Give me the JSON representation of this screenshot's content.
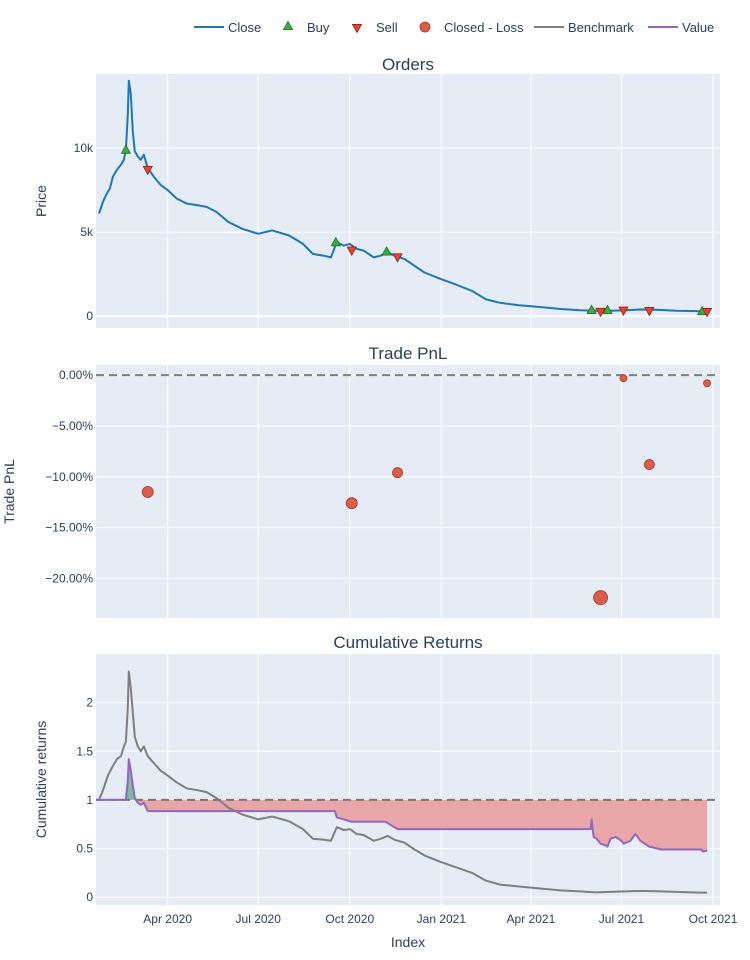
{
  "chart_data": {
    "type": "line",
    "x_ticks": [
      "Apr 2020",
      "Jul 2020",
      "Oct 2020",
      "Jan 2021",
      "Apr 2021",
      "Jul 2021",
      "Oct 2021"
    ],
    "xlabel": "Index",
    "x_range": [
      "2020-01-20",
      "2021-10-08"
    ],
    "legend": {
      "placement": "top-right",
      "entries": [
        "Close",
        "Buy",
        "Sell",
        "Closed - Loss",
        "Benchmark",
        "Value"
      ]
    },
    "colors": {
      "plot_bg": "#e5ecf6",
      "grid": "#ffffff",
      "close": "#1f77b4",
      "buy": "#37b13f",
      "sell": "#ea4335",
      "closed_loss": "#d95f4b",
      "benchmark": "#7f7f7f",
      "value": "#9467bd",
      "fill_loss": "#e8a2a6",
      "fill_gain": "#7fb3a0"
    },
    "panels": [
      {
        "title": "Orders",
        "ylabel": "Price",
        "ylim": [
          -700,
          14400
        ],
        "y_ticks": [
          {
            "value": 0,
            "label": "0"
          },
          {
            "value": 5000,
            "label": "5k"
          },
          {
            "value": 10000,
            "label": "10k"
          }
        ],
        "close": [
          [
            "2020-01-23",
            6100
          ],
          [
            "2020-01-27",
            6800
          ],
          [
            "2020-01-30",
            7200
          ],
          [
            "2020-02-03",
            7600
          ],
          [
            "2020-02-06",
            8300
          ],
          [
            "2020-02-10",
            8700
          ],
          [
            "2020-02-14",
            9000
          ],
          [
            "2020-02-17",
            9300
          ],
          [
            "2020-02-19",
            9900
          ],
          [
            "2020-02-21",
            12000
          ],
          [
            "2020-02-22",
            14000
          ],
          [
            "2020-02-24",
            13200
          ],
          [
            "2020-02-26",
            11000
          ],
          [
            "2020-02-28",
            9800
          ],
          [
            "2020-03-02",
            9500
          ],
          [
            "2020-03-05",
            9300
          ],
          [
            "2020-03-08",
            9600
          ],
          [
            "2020-03-12",
            8800
          ],
          [
            "2020-03-18",
            8300
          ],
          [
            "2020-03-25",
            7800
          ],
          [
            "2020-04-01",
            7500
          ],
          [
            "2020-04-10",
            7000
          ],
          [
            "2020-04-20",
            6700
          ],
          [
            "2020-05-01",
            6600
          ],
          [
            "2020-05-10",
            6500
          ],
          [
            "2020-05-20",
            6200
          ],
          [
            "2020-06-01",
            5600
          ],
          [
            "2020-06-15",
            5200
          ],
          [
            "2020-07-01",
            4900
          ],
          [
            "2020-07-15",
            5100
          ],
          [
            "2020-08-01",
            4800
          ],
          [
            "2020-08-15",
            4300
          ],
          [
            "2020-08-25",
            3700
          ],
          [
            "2020-09-05",
            3600
          ],
          [
            "2020-09-12",
            3500
          ],
          [
            "2020-09-18",
            4400
          ],
          [
            "2020-09-25",
            4200
          ],
          [
            "2020-10-01",
            4300
          ],
          [
            "2020-10-08",
            4000
          ],
          [
            "2020-10-15",
            3900
          ],
          [
            "2020-10-25",
            3500
          ],
          [
            "2020-11-01",
            3600
          ],
          [
            "2020-11-08",
            3800
          ],
          [
            "2020-11-15",
            3600
          ],
          [
            "2020-11-25",
            3400
          ],
          [
            "2020-12-05",
            3000
          ],
          [
            "2020-12-15",
            2600
          ],
          [
            "2021-01-01",
            2200
          ],
          [
            "2021-01-15",
            1900
          ],
          [
            "2021-02-01",
            1500
          ],
          [
            "2021-02-15",
            1000
          ],
          [
            "2021-03-01",
            800
          ],
          [
            "2021-03-20",
            650
          ],
          [
            "2021-04-10",
            550
          ],
          [
            "2021-05-01",
            430
          ],
          [
            "2021-05-20",
            350
          ],
          [
            "2021-06-05",
            320
          ],
          [
            "2021-06-20",
            330
          ],
          [
            "2021-07-05",
            360
          ],
          [
            "2021-07-20",
            400
          ],
          [
            "2021-08-05",
            380
          ],
          [
            "2021-08-25",
            330
          ],
          [
            "2021-09-10",
            310
          ],
          [
            "2021-09-25",
            280
          ]
        ],
        "buy": [
          [
            "2020-02-19",
            9900
          ],
          [
            "2020-09-17",
            4400
          ],
          [
            "2020-11-07",
            3850
          ],
          [
            "2021-06-01",
            380
          ],
          [
            "2021-06-17",
            370
          ],
          [
            "2021-09-20",
            300
          ]
        ],
        "sell": [
          [
            "2020-03-12",
            8700
          ],
          [
            "2020-10-03",
            3900
          ],
          [
            "2020-11-18",
            3500
          ],
          [
            "2021-06-10",
            260
          ],
          [
            "2021-07-03",
            330
          ],
          [
            "2021-07-29",
            310
          ],
          [
            "2021-09-25",
            250
          ]
        ]
      },
      {
        "title": "Trade PnL",
        "ylabel": "Trade PnL",
        "ylim": [
          -23.9,
          1.0
        ],
        "y_ticks": [
          {
            "value": 0,
            "label": "0.00%"
          },
          {
            "value": -5,
            "label": "−5.00%"
          },
          {
            "value": -10,
            "label": "−10.00%"
          },
          {
            "value": -15,
            "label": "−15.00%"
          },
          {
            "value": -20,
            "label": "−20.00%"
          }
        ],
        "reference_line": 0,
        "closed_loss": [
          [
            "2020-03-12",
            -11.5,
            5.5
          ],
          [
            "2020-10-03",
            -12.6,
            5.5
          ],
          [
            "2020-11-18",
            -9.6,
            5
          ],
          [
            "2021-06-10",
            -21.9,
            7
          ],
          [
            "2021-07-03",
            -0.3,
            3.5
          ],
          [
            "2021-07-29",
            -8.8,
            5
          ],
          [
            "2021-09-25",
            -0.8,
            3.5
          ]
        ]
      },
      {
        "title": "Cumulative Returns",
        "ylabel": "Cumulative returns",
        "ylim": [
          -0.08,
          2.5
        ],
        "y_ticks": [
          {
            "value": 0,
            "label": "0"
          },
          {
            "value": 0.5,
            "label": "0.5"
          },
          {
            "value": 1,
            "label": "1"
          },
          {
            "value": 1.5,
            "label": "1.5"
          },
          {
            "value": 2,
            "label": "2"
          }
        ],
        "reference_line": 1,
        "benchmark": [
          [
            "2020-01-20",
            1.0
          ],
          [
            "2020-01-23",
            1.0
          ],
          [
            "2020-01-27",
            1.1
          ],
          [
            "2020-02-01",
            1.25
          ],
          [
            "2020-02-06",
            1.35
          ],
          [
            "2020-02-10",
            1.42
          ],
          [
            "2020-02-14",
            1.45
          ],
          [
            "2020-02-17",
            1.55
          ],
          [
            "2020-02-19",
            1.6
          ],
          [
            "2020-02-21",
            1.95
          ],
          [
            "2020-02-22",
            2.32
          ],
          [
            "2020-02-24",
            2.15
          ],
          [
            "2020-02-26",
            1.9
          ],
          [
            "2020-02-28",
            1.65
          ],
          [
            "2020-03-02",
            1.55
          ],
          [
            "2020-03-05",
            1.5
          ],
          [
            "2020-03-08",
            1.55
          ],
          [
            "2020-03-12",
            1.45
          ],
          [
            "2020-03-18",
            1.38
          ],
          [
            "2020-03-25",
            1.3
          ],
          [
            "2020-04-01",
            1.25
          ],
          [
            "2020-04-10",
            1.18
          ],
          [
            "2020-04-20",
            1.12
          ],
          [
            "2020-05-01",
            1.1
          ],
          [
            "2020-05-10",
            1.08
          ],
          [
            "2020-05-20",
            1.02
          ],
          [
            "2020-06-01",
            0.92
          ],
          [
            "2020-06-15",
            0.85
          ],
          [
            "2020-07-01",
            0.8
          ],
          [
            "2020-07-15",
            0.83
          ],
          [
            "2020-08-01",
            0.78
          ],
          [
            "2020-08-15",
            0.7
          ],
          [
            "2020-08-25",
            0.6
          ],
          [
            "2020-09-05",
            0.59
          ],
          [
            "2020-09-12",
            0.58
          ],
          [
            "2020-09-18",
            0.72
          ],
          [
            "2020-09-25",
            0.69
          ],
          [
            "2020-10-01",
            0.7
          ],
          [
            "2020-10-08",
            0.65
          ],
          [
            "2020-10-15",
            0.64
          ],
          [
            "2020-10-25",
            0.58
          ],
          [
            "2020-11-01",
            0.6
          ],
          [
            "2020-11-08",
            0.63
          ],
          [
            "2020-11-15",
            0.59
          ],
          [
            "2020-11-25",
            0.56
          ],
          [
            "2020-12-05",
            0.49
          ],
          [
            "2020-12-15",
            0.43
          ],
          [
            "2021-01-01",
            0.36
          ],
          [
            "2021-01-15",
            0.31
          ],
          [
            "2021-02-01",
            0.25
          ],
          [
            "2021-02-15",
            0.17
          ],
          [
            "2021-03-01",
            0.13
          ],
          [
            "2021-03-20",
            0.11
          ],
          [
            "2021-04-10",
            0.09
          ],
          [
            "2021-05-01",
            0.07
          ],
          [
            "2021-05-20",
            0.06
          ],
          [
            "2021-06-05",
            0.05
          ],
          [
            "2021-06-20",
            0.055
          ],
          [
            "2021-07-05",
            0.06
          ],
          [
            "2021-07-20",
            0.065
          ],
          [
            "2021-08-05",
            0.062
          ],
          [
            "2021-08-25",
            0.055
          ],
          [
            "2021-09-10",
            0.05
          ],
          [
            "2021-09-25",
            0.045
          ]
        ],
        "value": [
          [
            "2020-01-20",
            1.0
          ],
          [
            "2020-02-18",
            1.0
          ],
          [
            "2020-02-19",
            1.0
          ],
          [
            "2020-02-21",
            1.2
          ],
          [
            "2020-02-22",
            1.42
          ],
          [
            "2020-02-24",
            1.3
          ],
          [
            "2020-02-26",
            1.15
          ],
          [
            "2020-02-28",
            1.02
          ],
          [
            "2020-03-02",
            0.97
          ],
          [
            "2020-03-05",
            0.95
          ],
          [
            "2020-03-08",
            0.97
          ],
          [
            "2020-03-12",
            0.885
          ],
          [
            "2020-09-16",
            0.885
          ],
          [
            "2020-09-18",
            0.82
          ],
          [
            "2020-09-25",
            0.8
          ],
          [
            "2020-10-01",
            0.78
          ],
          [
            "2020-10-03",
            0.775
          ],
          [
            "2020-11-06",
            0.775
          ],
          [
            "2020-11-10",
            0.75
          ],
          [
            "2020-11-18",
            0.7
          ],
          [
            "2021-05-31",
            0.7
          ],
          [
            "2021-06-01",
            0.8
          ],
          [
            "2021-06-03",
            0.62
          ],
          [
            "2021-06-06",
            0.6
          ],
          [
            "2021-06-10",
            0.55
          ],
          [
            "2021-06-16",
            0.53
          ],
          [
            "2021-06-17",
            0.52
          ],
          [
            "2021-06-20",
            0.6
          ],
          [
            "2021-06-25",
            0.62
          ],
          [
            "2021-07-01",
            0.58
          ],
          [
            "2021-07-03",
            0.55
          ],
          [
            "2021-07-10",
            0.58
          ],
          [
            "2021-07-15",
            0.65
          ],
          [
            "2021-07-20",
            0.58
          ],
          [
            "2021-07-29",
            0.52
          ],
          [
            "2021-08-10",
            0.49
          ],
          [
            "2021-09-19",
            0.49
          ],
          [
            "2021-09-21",
            0.47
          ],
          [
            "2021-09-25",
            0.48
          ]
        ]
      }
    ]
  }
}
